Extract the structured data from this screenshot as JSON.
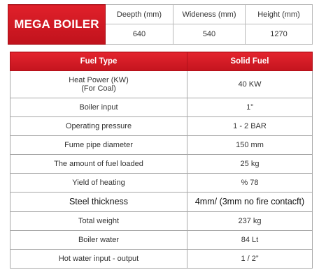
{
  "brand": "MEGA BOILER",
  "dimensions": {
    "headers": [
      "Deepth (mm)",
      "Wideness (mm)",
      "Height (mm)"
    ],
    "values": [
      "640",
      "540",
      "1270"
    ]
  },
  "specs": {
    "header_left": "Fuel Type",
    "header_right": "Solid Fuel",
    "rows": [
      {
        "label": "Heat Power (KW)",
        "sublabel": "(For Coal)",
        "value": "40 KW"
      },
      {
        "label": "Boiler input",
        "value": "1”"
      },
      {
        "label": "Operating pressure",
        "value": "1 - 2 BAR"
      },
      {
        "label": "Fume pipe diameter",
        "value": "150 mm"
      },
      {
        "label": "The amount of fuel loaded",
        "value": "25 kg"
      },
      {
        "label": "Yield of heating",
        "value": "% 78"
      },
      {
        "label": "Steel thickness",
        "value": "4mm/ (3mm no fire contacft)"
      },
      {
        "label": "Total weight",
        "value": "237 kg"
      },
      {
        "label": "Boiler water",
        "value": "84 Lt"
      },
      {
        "label": "Hot water input - output",
        "value": "1 / 2”"
      }
    ]
  },
  "colors": {
    "accent_red": "#d01a24",
    "border_gray": "#a8a8a8"
  }
}
